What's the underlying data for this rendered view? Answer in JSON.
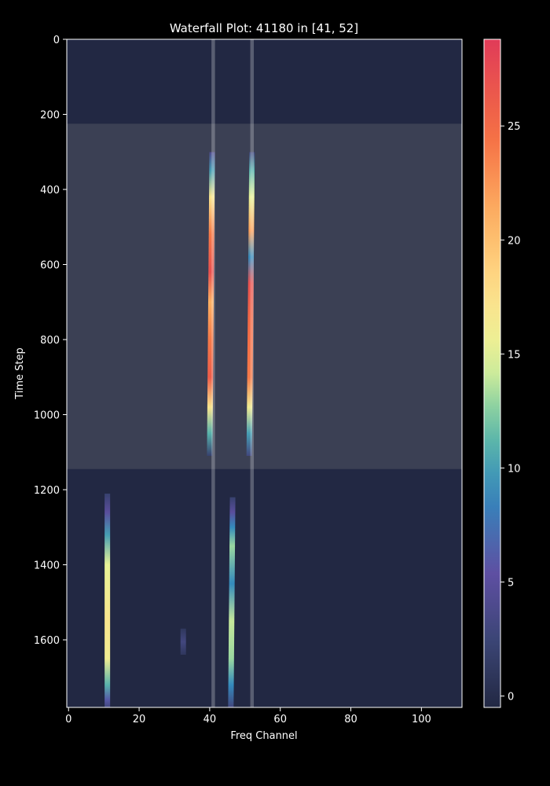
{
  "chart_data": {
    "type": "heatmap",
    "title": "Waterfall Plot: 41180 in [41, 52]",
    "xlabel": "Freq Channel",
    "ylabel": "Time Step",
    "xlim": [
      -0.5,
      111.5
    ],
    "ylim": [
      1780,
      0
    ],
    "x_ticks": [
      0,
      20,
      40,
      60,
      80,
      100
    ],
    "y_ticks": [
      0,
      200,
      400,
      600,
      800,
      1000,
      1200,
      1400,
      1600
    ],
    "colorbar": {
      "range": [
        -0.5,
        28.8
      ],
      "ticks": [
        0,
        5,
        10,
        15,
        20,
        25
      ],
      "colormap": "Spectral_r"
    },
    "background_value": 0,
    "highlight_region": {
      "time_start": 225,
      "time_end": 1145
    },
    "highlight_channels": [
      41,
      52
    ],
    "signals": [
      {
        "name": "drift-signal-ch41",
        "channel_start": 40.7,
        "channel_end": 40.0,
        "time_start": 300,
        "time_end": 1110,
        "intensity": [
          {
            "t": 300,
            "v": 4
          },
          {
            "t": 350,
            "v": 10
          },
          {
            "t": 420,
            "v": 17
          },
          {
            "t": 520,
            "v": 24
          },
          {
            "t": 620,
            "v": 27
          },
          {
            "t": 700,
            "v": 21
          },
          {
            "t": 800,
            "v": 24
          },
          {
            "t": 900,
            "v": 26
          },
          {
            "t": 980,
            "v": 17
          },
          {
            "t": 1050,
            "v": 11
          },
          {
            "t": 1110,
            "v": 2
          }
        ]
      },
      {
        "name": "drift-signal-ch52",
        "channel_start": 52.0,
        "channel_end": 51.2,
        "time_start": 300,
        "time_end": 1110,
        "intensity": [
          {
            "t": 300,
            "v": 3
          },
          {
            "t": 350,
            "v": 11
          },
          {
            "t": 420,
            "v": 15
          },
          {
            "t": 510,
            "v": 22
          },
          {
            "t": 580,
            "v": 9
          },
          {
            "t": 650,
            "v": 27
          },
          {
            "t": 750,
            "v": 25
          },
          {
            "t": 900,
            "v": 24
          },
          {
            "t": 980,
            "v": 16
          },
          {
            "t": 1050,
            "v": 10
          },
          {
            "t": 1110,
            "v": 3
          }
        ]
      },
      {
        "name": "steady-signal-ch11",
        "channel_start": 11.0,
        "channel_end": 11.0,
        "time_start": 1210,
        "time_end": 1780,
        "intensity": [
          {
            "t": 1210,
            "v": 2
          },
          {
            "t": 1260,
            "v": 5
          },
          {
            "t": 1320,
            "v": 10
          },
          {
            "t": 1400,
            "v": 15
          },
          {
            "t": 1550,
            "v": 17
          },
          {
            "t": 1650,
            "v": 16
          },
          {
            "t": 1720,
            "v": 11
          },
          {
            "t": 1760,
            "v": 6
          },
          {
            "t": 1780,
            "v": 3
          }
        ]
      },
      {
        "name": "steady-signal-ch46",
        "channel_start": 46.5,
        "channel_end": 46.0,
        "time_start": 1220,
        "time_end": 1780,
        "intensity": [
          {
            "t": 1220,
            "v": 2
          },
          {
            "t": 1260,
            "v": 5
          },
          {
            "t": 1300,
            "v": 9
          },
          {
            "t": 1350,
            "v": 13
          },
          {
            "t": 1450,
            "v": 9
          },
          {
            "t": 1550,
            "v": 14
          },
          {
            "t": 1650,
            "v": 13
          },
          {
            "t": 1720,
            "v": 9
          },
          {
            "t": 1780,
            "v": 3
          }
        ]
      },
      {
        "name": "faint-signal-ch32",
        "channel_start": 32.5,
        "channel_end": 32.5,
        "time_start": 1570,
        "time_end": 1640,
        "intensity": [
          {
            "t": 1570,
            "v": 1
          },
          {
            "t": 1605,
            "v": 3
          },
          {
            "t": 1640,
            "v": 1
          }
        ]
      }
    ]
  }
}
